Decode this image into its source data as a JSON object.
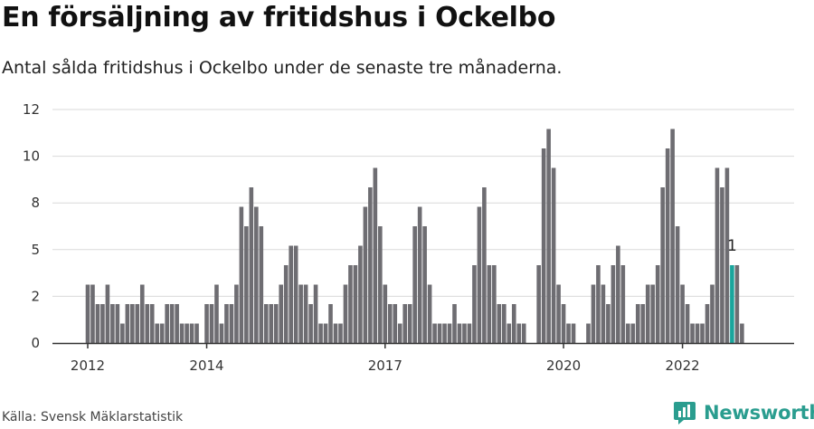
{
  "header": {
    "title": "En försäljning av fritidshus i Ockelbo",
    "subtitle": "Antal sålda fritidshus i Ockelbo under de senaste tre månaderna."
  },
  "footer": {
    "source": "Källa: Svensk Mäklarstatistik",
    "brand": "Newsworthy"
  },
  "colors": {
    "bar": "#6e6d72",
    "highlight": "#1aa59c",
    "grid": "#d9d9d9",
    "axis": "#333333",
    "brand": "#2a9d8f"
  },
  "chart_data": {
    "type": "bar",
    "title": "En försäljning av fritidshus i Ockelbo",
    "subtitle": "Antal sålda fritidshus i Ockelbo under de senaste tre månaderna.",
    "xlabel": "",
    "ylabel": "",
    "ylim": [
      0,
      12
    ],
    "yticks": [
      "0",
      "2",
      "5",
      "8",
      "10",
      "12"
    ],
    "xticks": [
      {
        "label": "2012",
        "index": 0
      },
      {
        "label": "2014",
        "index": 24
      },
      {
        "label": "2017",
        "index": 60
      },
      {
        "label": "2020",
        "index": 96
      },
      {
        "label": "2022",
        "index": 120
      }
    ],
    "grid": true,
    "values": [
      3,
      3,
      2,
      2,
      3,
      2,
      2,
      1,
      2,
      2,
      2,
      3,
      2,
      2,
      1,
      1,
      2,
      2,
      2,
      1,
      1,
      1,
      1,
      0,
      2,
      2,
      3,
      1,
      2,
      2,
      3,
      7,
      6,
      8,
      7,
      6,
      2,
      2,
      2,
      3,
      4,
      5,
      5,
      3,
      3,
      2,
      3,
      1,
      1,
      2,
      1,
      1,
      3,
      4,
      4,
      5,
      7,
      8,
      9,
      6,
      3,
      2,
      2,
      1,
      2,
      2,
      6,
      7,
      6,
      3,
      1,
      1,
      1,
      1,
      2,
      1,
      1,
      1,
      4,
      7,
      8,
      4,
      4,
      2,
      2,
      1,
      2,
      1,
      1,
      0,
      0,
      4,
      10,
      11,
      9,
      3,
      2,
      1,
      1,
      0,
      0,
      1,
      3,
      4,
      3,
      2,
      4,
      5,
      4,
      1,
      1,
      2,
      2,
      3,
      3,
      4,
      8,
      10,
      11,
      6,
      3,
      2,
      1,
      1,
      1,
      2,
      3,
      9,
      8,
      9,
      4,
      4,
      1
    ],
    "highlight": {
      "index": 130,
      "label": "1"
    }
  }
}
